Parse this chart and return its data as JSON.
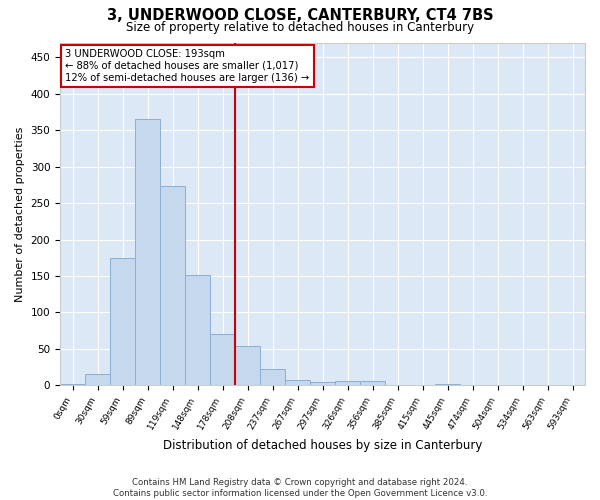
{
  "title": "3, UNDERWOOD CLOSE, CANTERBURY, CT4 7BS",
  "subtitle": "Size of property relative to detached houses in Canterbury",
  "xlabel": "Distribution of detached houses by size in Canterbury",
  "ylabel": "Number of detached properties",
  "footer1": "Contains HM Land Registry data © Crown copyright and database right 2024.",
  "footer2": "Contains public sector information licensed under the Open Government Licence v3.0.",
  "categories": [
    "0sqm",
    "30sqm",
    "59sqm",
    "89sqm",
    "119sqm",
    "148sqm",
    "178sqm",
    "208sqm",
    "237sqm",
    "267sqm",
    "297sqm",
    "326sqm",
    "356sqm",
    "385sqm",
    "415sqm",
    "445sqm",
    "474sqm",
    "504sqm",
    "534sqm",
    "563sqm",
    "593sqm"
  ],
  "values": [
    2,
    16,
    175,
    365,
    273,
    152,
    70,
    54,
    22,
    8,
    5,
    6,
    6,
    0,
    0,
    2,
    0,
    0,
    1,
    0,
    1
  ],
  "bar_color": "#c5d8ed",
  "bar_edge_color": "#8aafd4",
  "background_color": "#dce8f5",
  "grid_color": "#ffffff",
  "annotation_box_color": "#cc0000",
  "annotation_line_color": "#cc0000",
  "annotation_text1": "3 UNDERWOOD CLOSE: 193sqm",
  "annotation_text2": "← 88% of detached houses are smaller (1,017)",
  "annotation_text3": "12% of semi-detached houses are larger (136) →",
  "vline_x": 6.5,
  "ylim": [
    0,
    470
  ],
  "yticks": [
    0,
    50,
    100,
    150,
    200,
    250,
    300,
    350,
    400,
    450
  ],
  "fig_width": 6.0,
  "fig_height": 5.0,
  "fig_dpi": 100,
  "fig_bg": "#ffffff"
}
